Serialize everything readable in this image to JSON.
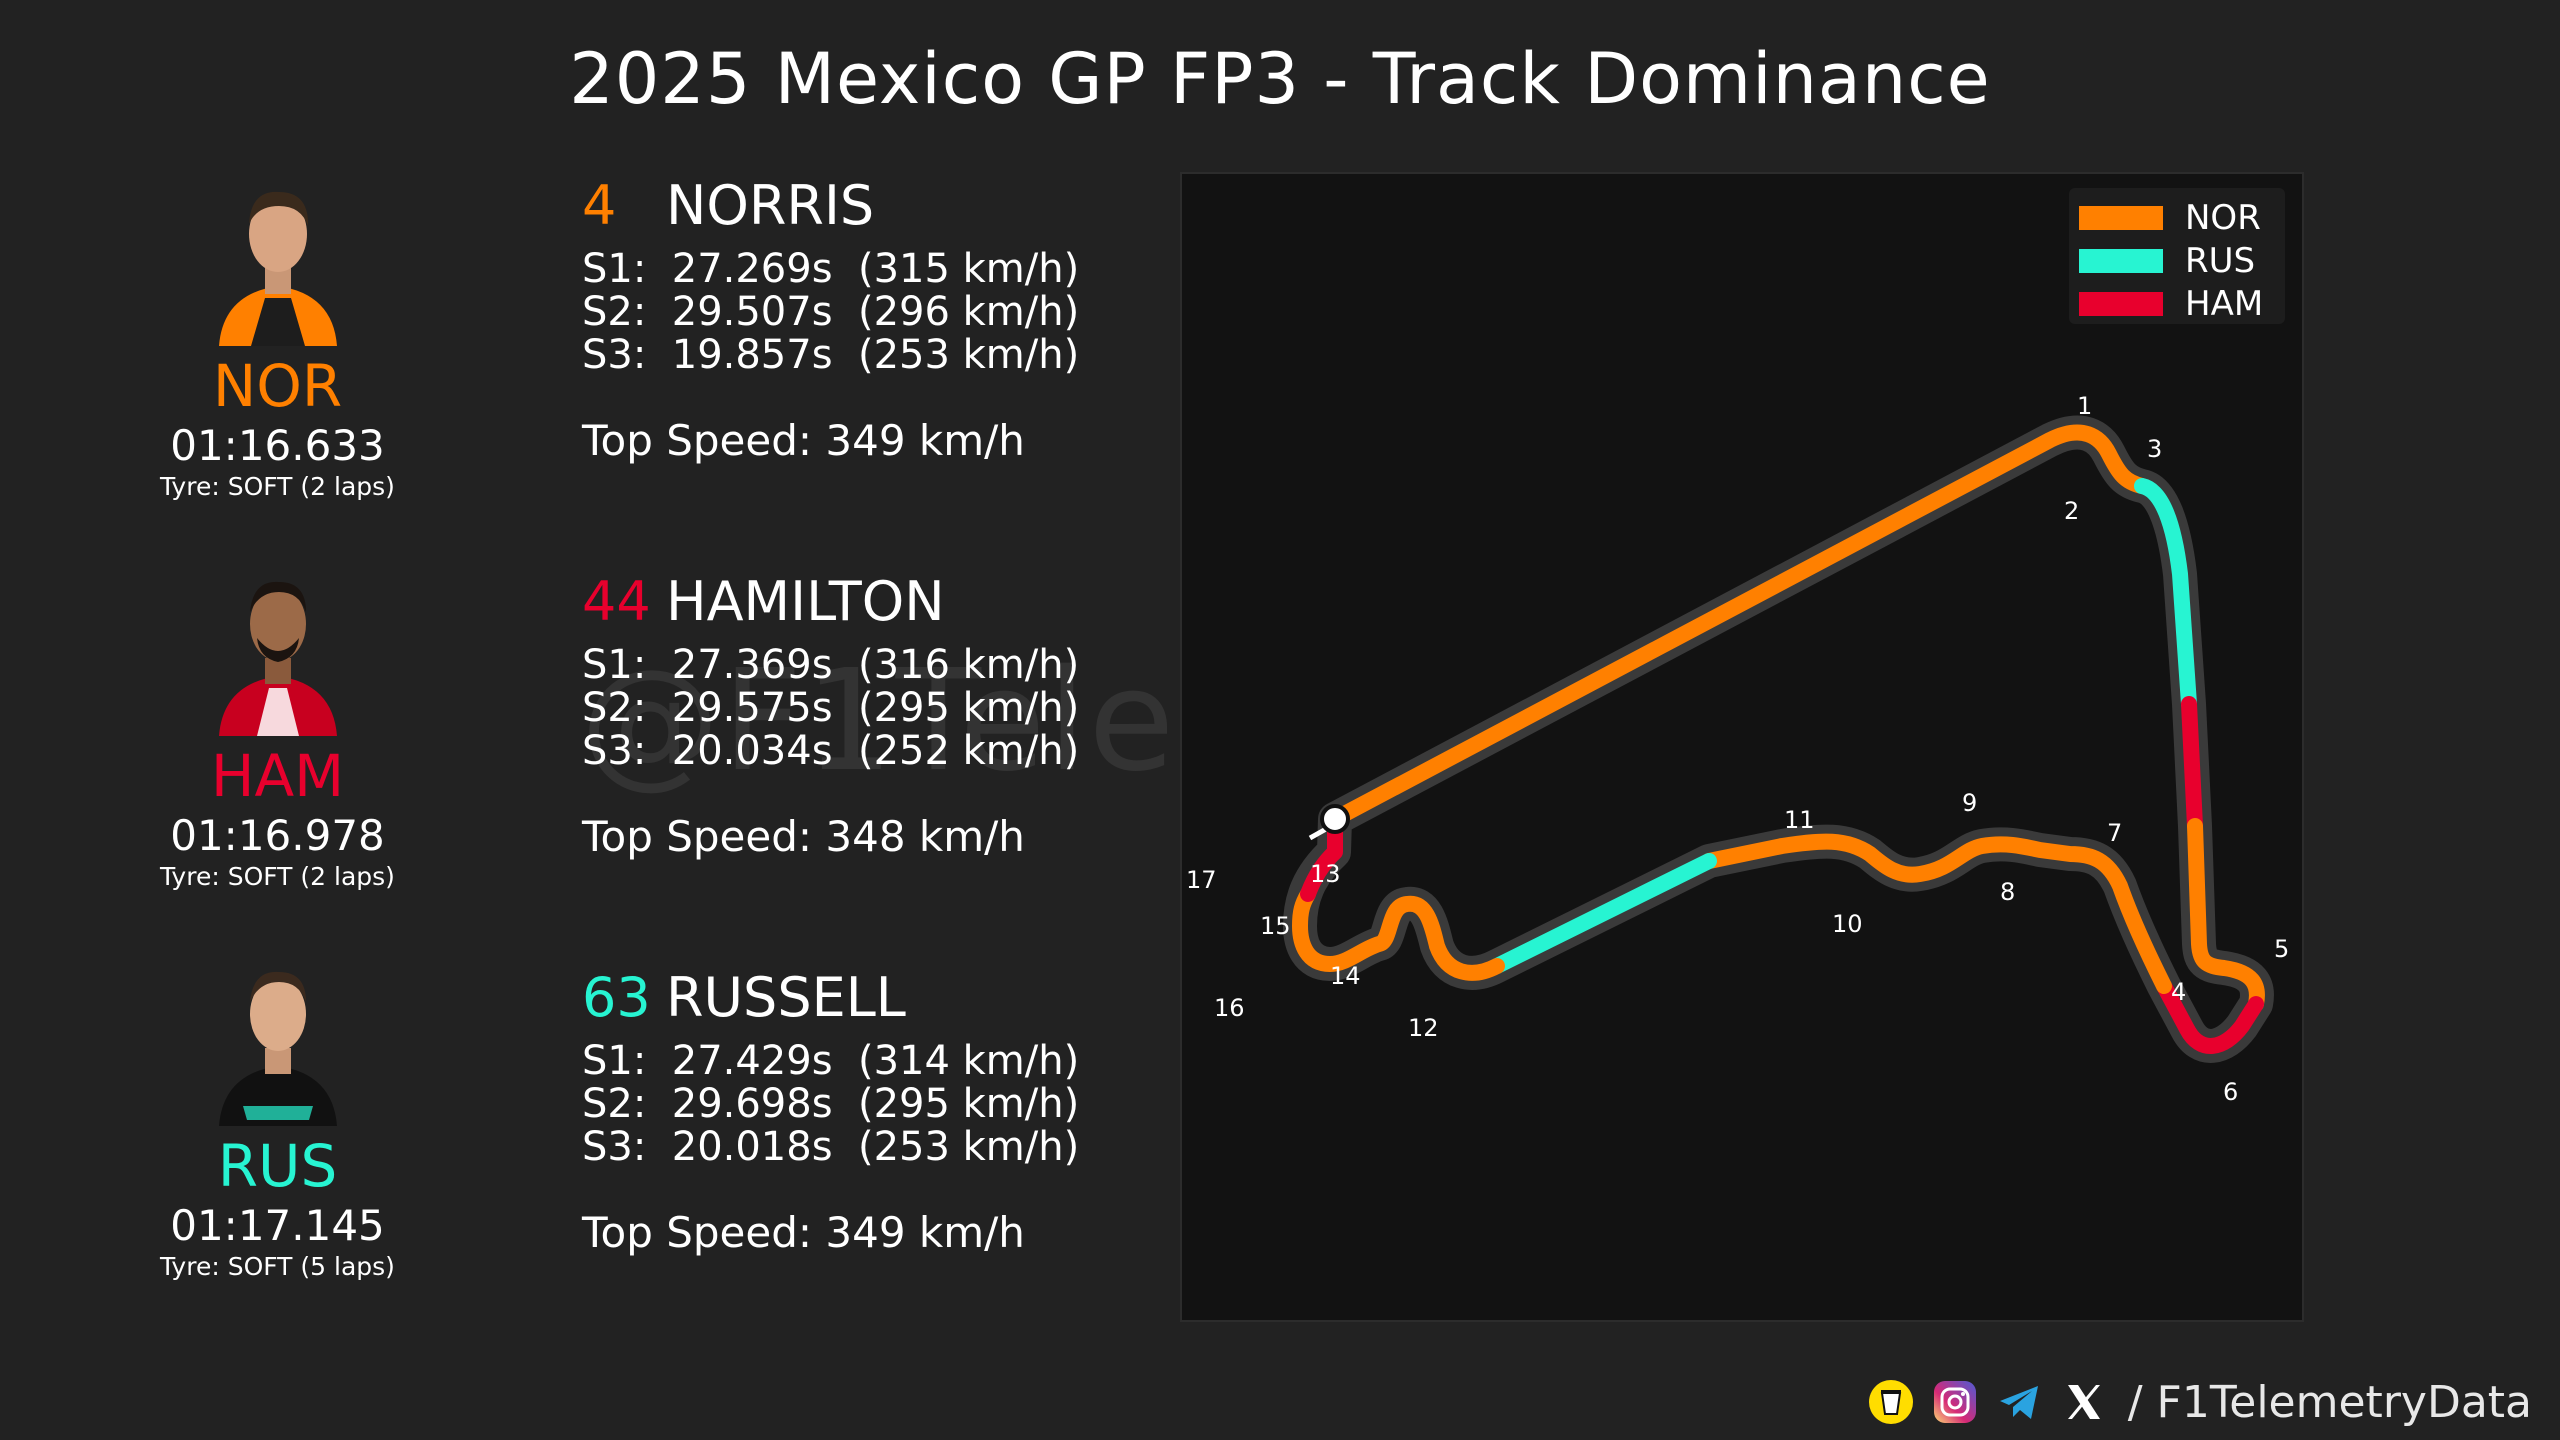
{
  "title": "2025 Mexico GP FP3 - Track Dominance",
  "watermark": "@F1TelemetryData",
  "colors": {
    "NOR": "#ff8000",
    "RUS": "#27f4d2",
    "HAM": "#e8002d",
    "background": "#222222",
    "track_panel": "#121212"
  },
  "drivers": [
    {
      "abbr": "NOR",
      "number": "4",
      "name": "NORRIS",
      "color": "#ff8000",
      "lap_time": "01:16.633",
      "tyre": "Tyre: SOFT (2 laps)",
      "s1": "S1:  27.269s  (315 km/h)",
      "s2": "S2:  29.507s  (296 km/h)",
      "s3": "S3:  19.857s  (253 km/h)",
      "top_speed": "Top Speed: 349 km/h",
      "avatar_icon": "driver-portrait-icon"
    },
    {
      "abbr": "HAM",
      "number": "44",
      "name": "HAMILTON",
      "color": "#e8002d",
      "lap_time": "01:16.978",
      "tyre": "Tyre: SOFT (2 laps)",
      "s1": "S1:  27.369s  (316 km/h)",
      "s2": "S2:  29.575s  (295 km/h)",
      "s3": "S3:  20.034s  (252 km/h)",
      "top_speed": "Top Speed: 348 km/h",
      "avatar_icon": "driver-portrait-icon"
    },
    {
      "abbr": "RUS",
      "number": "63",
      "name": "RUSSELL",
      "color": "#27f4d2",
      "lap_time": "01:17.145",
      "tyre": "Tyre: SOFT (5 laps)",
      "s1": "S1:  27.429s  (314 km/h)",
      "s2": "S2:  29.698s  (295 km/h)",
      "s3": "S3:  20.018s  (253 km/h)",
      "top_speed": "Top Speed: 349 km/h",
      "avatar_icon": "driver-portrait-icon"
    }
  ],
  "legend": [
    {
      "label": "NOR",
      "color": "#ff8000"
    },
    {
      "label": "RUS",
      "color": "#27f4d2"
    },
    {
      "label": "HAM",
      "color": "#e8002d"
    }
  ],
  "corners": [
    "1",
    "2",
    "3",
    "4",
    "5",
    "6",
    "7",
    "8",
    "9",
    "10",
    "11",
    "12",
    "13",
    "14",
    "15",
    "16",
    "17"
  ],
  "footer": {
    "handle": "/ F1TelemetryData",
    "icons": [
      "coffee-cup-icon",
      "instagram-icon",
      "telegram-icon",
      "x-logo-icon"
    ]
  }
}
